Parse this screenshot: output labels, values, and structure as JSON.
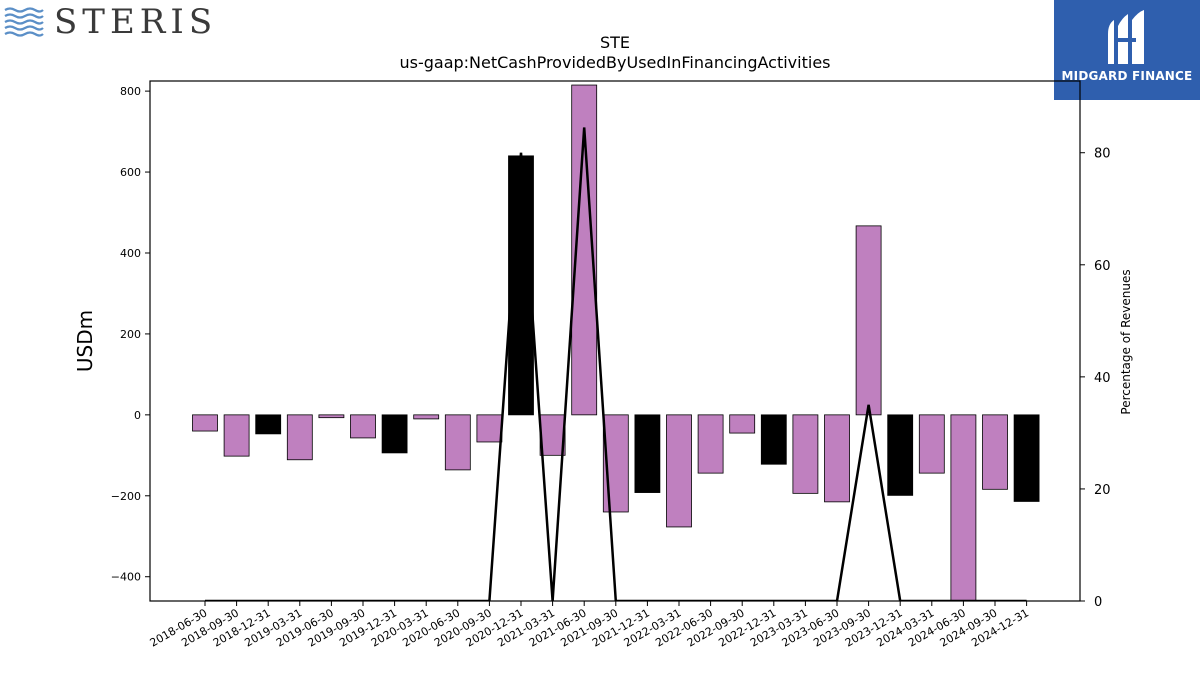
{
  "brand": {
    "left_wordmark": "STERIS",
    "right_wordmark": "MIDGARD FINANCE"
  },
  "chart_data": {
    "type": "bar",
    "title": "STE",
    "subtitle": "us-gaap:NetCashProvidedByUsedInFinancingActivities",
    "ylabel": "USDm",
    "y2label": "Percentage of Revenues",
    "ylim": [
      -460,
      825
    ],
    "y2lim": [
      0,
      92.8
    ],
    "yticks": [
      -400,
      -200,
      0,
      200,
      400,
      600,
      800
    ],
    "y2ticks": [
      0,
      20,
      40,
      60,
      80
    ],
    "colors": {
      "quarter": "#bf80bf",
      "year_end": "#000000",
      "line": "#000000"
    },
    "categories": [
      "2018-06-30",
      "2018-09-30",
      "2018-12-31",
      "2019-03-31",
      "2019-06-30",
      "2019-09-30",
      "2019-12-31",
      "2020-03-31",
      "2020-06-30",
      "2020-09-30",
      "2020-12-31",
      "2021-03-31",
      "2021-06-30",
      "2021-09-30",
      "2021-12-31",
      "2022-03-31",
      "2022-06-30",
      "2022-09-30",
      "2022-12-31",
      "2023-03-31",
      "2023-06-30",
      "2023-09-30",
      "2023-12-31",
      "2024-03-31",
      "2024-06-30",
      "2024-09-30",
      "2024-12-31"
    ],
    "series": [
      {
        "values": [
          -40,
          -102,
          -47,
          -111,
          -7,
          -57,
          -94,
          -10,
          -136,
          -67,
          640,
          -100,
          815,
          -240,
          -192,
          -277,
          -144,
          -45,
          -122,
          -194,
          -215,
          467,
          -199,
          -144,
          -470,
          -184,
          -214
        ]
      },
      {
        "values": [
          0,
          0,
          0,
          0,
          0,
          0,
          0,
          0,
          0,
          0,
          80,
          0,
          84.5,
          0,
          0,
          0,
          0,
          0,
          0,
          0,
          0,
          35,
          0,
          0,
          0,
          0,
          0
        ]
      }
    ]
  }
}
